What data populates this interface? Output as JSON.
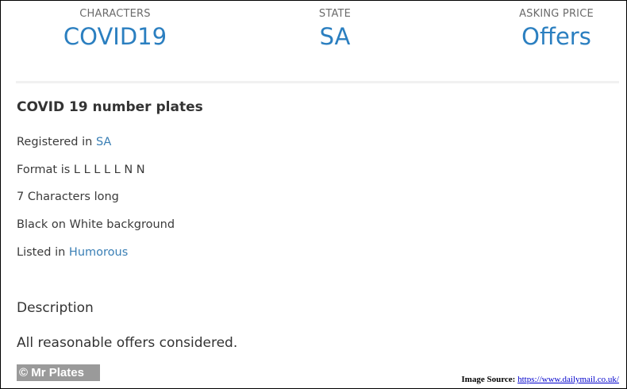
{
  "stats": [
    {
      "label": "CHARACTERS",
      "value": "COVID19"
    },
    {
      "label": "STATE",
      "value": "SA"
    },
    {
      "label": "ASKING PRICE",
      "value": "Offers"
    }
  ],
  "details": {
    "title": "COVID 19 number plates",
    "registered_prefix": "Registered in ",
    "registered_link": "SA",
    "format": "Format is L L L L L N N",
    "length": "7 Characters long",
    "colors": "Black on White background",
    "listed_prefix": "Listed in ",
    "listed_link": "Humorous"
  },
  "description": {
    "heading": "Description",
    "text": "All reasonable offers considered."
  },
  "watermark": "© Mr Plates",
  "source": {
    "label": "Image Source:",
    "url": "https://www.dailymail.co.uk/"
  },
  "colors": {
    "accent": "#2b7fc0",
    "link": "#3a7fb5"
  }
}
